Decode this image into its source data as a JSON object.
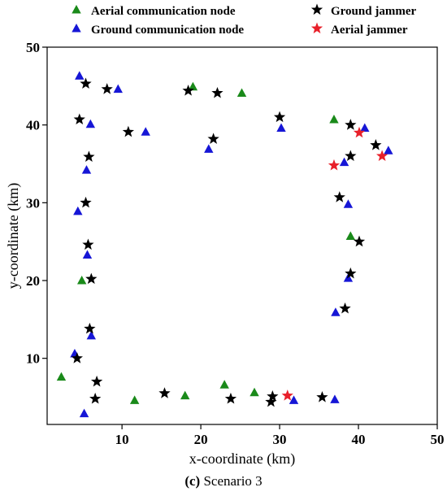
{
  "chart_data": {
    "type": "scatter",
    "xlabel": "x-coordinate (km)",
    "ylabel": "y-coordinate (km)",
    "xlim": [
      0.5,
      50
    ],
    "ylim": [
      1.5,
      50
    ],
    "xticks": [
      10,
      20,
      30,
      40,
      50
    ],
    "yticks": [
      10,
      20,
      30,
      40,
      50
    ],
    "legend_position": "top (above plot), two columns",
    "grid": false,
    "series": [
      {
        "name": "Aerial communication node",
        "marker": "triangle",
        "color": "#1a8a1a",
        "points": [
          [
            2.3,
            7.6
          ],
          [
            4.9,
            20.0
          ],
          [
            11.6,
            4.6
          ],
          [
            18.0,
            5.2
          ],
          [
            19.0,
            44.9
          ],
          [
            23.0,
            6.6
          ],
          [
            25.2,
            44.1
          ],
          [
            26.8,
            5.6
          ],
          [
            36.9,
            40.7
          ],
          [
            39.0,
            25.7
          ]
        ]
      },
      {
        "name": "Ground communication node",
        "marker": "triangle",
        "color": "#1616d6",
        "points": [
          [
            4.6,
            46.3
          ],
          [
            9.5,
            44.6
          ],
          [
            6.0,
            40.1
          ],
          [
            13.0,
            39.1
          ],
          [
            21.0,
            36.9
          ],
          [
            30.2,
            39.6
          ],
          [
            5.5,
            34.2
          ],
          [
            4.4,
            28.9
          ],
          [
            5.6,
            23.3
          ],
          [
            6.1,
            12.9
          ],
          [
            4.0,
            10.6
          ],
          [
            5.2,
            2.9
          ],
          [
            31.8,
            4.6
          ],
          [
            37.0,
            4.7
          ],
          [
            37.1,
            15.9
          ],
          [
            38.7,
            20.3
          ],
          [
            38.7,
            29.8
          ],
          [
            38.2,
            35.2
          ],
          [
            40.8,
            39.6
          ],
          [
            43.8,
            36.7
          ]
        ]
      },
      {
        "name": "Ground jammer",
        "marker": "star",
        "color": "#000000",
        "points": [
          [
            5.4,
            45.3
          ],
          [
            8.1,
            44.6
          ],
          [
            18.4,
            44.4
          ],
          [
            22.1,
            44.1
          ],
          [
            4.6,
            40.7
          ],
          [
            10.8,
            39.1
          ],
          [
            21.6,
            38.2
          ],
          [
            30.0,
            41.0
          ],
          [
            39.0,
            40.0
          ],
          [
            42.2,
            37.4
          ],
          [
            39.0,
            36.0
          ],
          [
            5.8,
            35.9
          ],
          [
            5.4,
            30.0
          ],
          [
            5.7,
            24.6
          ],
          [
            37.6,
            30.7
          ],
          [
            40.1,
            25.0
          ],
          [
            6.1,
            20.2
          ],
          [
            39.0,
            20.9
          ],
          [
            38.3,
            16.4
          ],
          [
            5.9,
            13.8
          ],
          [
            4.3,
            10.0
          ],
          [
            6.8,
            7.0
          ],
          [
            6.6,
            4.8
          ],
          [
            15.4,
            5.5
          ],
          [
            23.8,
            4.8
          ],
          [
            28.9,
            4.4
          ],
          [
            29.1,
            5.1
          ],
          [
            35.4,
            5.0
          ]
        ]
      },
      {
        "name": "Aerial jammer",
        "marker": "star",
        "color": "#e8202a",
        "points": [
          [
            31.0,
            5.2
          ],
          [
            36.9,
            34.8
          ],
          [
            40.1,
            39.0
          ],
          [
            43.0,
            36.0
          ]
        ]
      }
    ]
  },
  "caption": {
    "label": "(c)",
    "text": "Scenario 3"
  }
}
